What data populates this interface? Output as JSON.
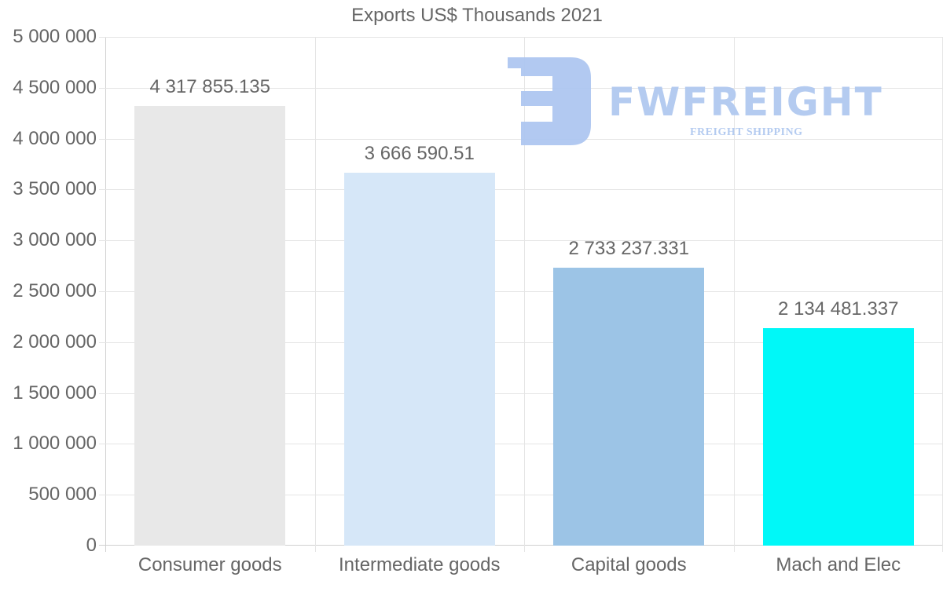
{
  "chart_data": {
    "type": "bar",
    "title": "Exports US$ Thousands 2021",
    "xlabel": "",
    "ylabel": "",
    "categories": [
      "Consumer goods",
      "Intermediate goods",
      "Capital goods",
      "Mach and Elec"
    ],
    "values": [
      4317855.135,
      3666590.51,
      2733237.331,
      2134481.337
    ],
    "value_labels": [
      "4 317 855.135",
      "3 666 590.51",
      "2 733 237.331",
      "2 134 481.337"
    ],
    "colors": [
      "#e8e8e8",
      "#d6e7f8",
      "#9cc4e6",
      "#00f8f8"
    ],
    "ylim": [
      0,
      5000000
    ],
    "yticks": [
      0,
      500000,
      1000000,
      1500000,
      2000000,
      2500000,
      3000000,
      3500000,
      4000000,
      4500000,
      5000000
    ],
    "ytick_labels": [
      "0",
      "500 000",
      "1 000 000",
      "1 500 000",
      "2 000 000",
      "2 500 000",
      "3 000 000",
      "3 500 000",
      "4 000 000",
      "4 500 000",
      "5 000 000"
    ],
    "grid": true,
    "legend": "none"
  },
  "watermark": {
    "brand": "FWFREIGHT",
    "tagline": "FREIGHT SHIPPING",
    "color": "#b1c9f0"
  }
}
